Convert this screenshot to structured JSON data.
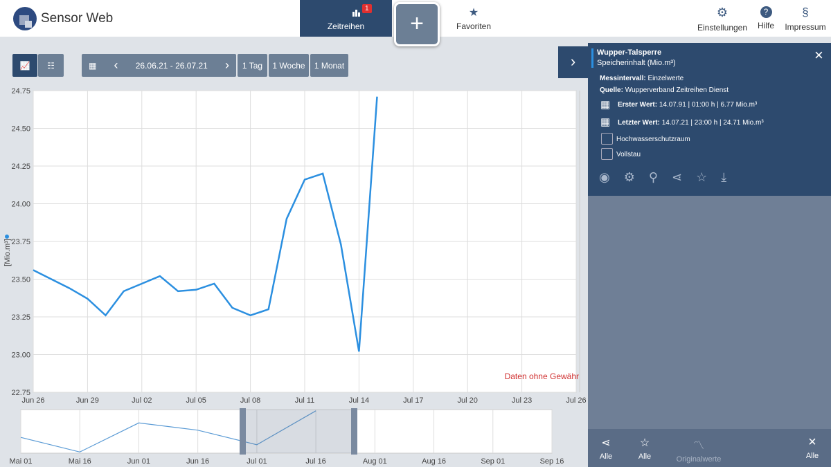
{
  "header": {
    "logo": "Sensor Web",
    "tabs": [
      {
        "label": "Zeitreihen",
        "badge": "1"
      },
      {
        "label": "Favoriten"
      }
    ],
    "menu": [
      "Einstellungen",
      "Hilfe",
      "Impressum"
    ]
  },
  "toolbar": {
    "date_range": "26.06.21 - 26.07.21",
    "buttons": [
      "1 Tag",
      "1 Woche",
      "1 Monat"
    ]
  },
  "main_chart": {
    "type": "line",
    "ylabel": "[Mio.m³]",
    "annotation": "Daten ohne Gewähr",
    "color": "#2b8fe0",
    "grid": true,
    "categories": [
      "Jun 26",
      null,
      null,
      "Jun 29",
      null,
      null,
      "Jul 02",
      null,
      null,
      "Jul 05",
      null,
      null,
      "Jul 08",
      null,
      null,
      "Jul 11",
      null,
      null,
      "Jul 14",
      null,
      null,
      "Jul 17",
      null,
      null,
      "Jul 20",
      null,
      null,
      "Jul 23",
      null,
      null,
      "Jul 26"
    ],
    "values": [
      23.56,
      23.5,
      23.44,
      23.37,
      23.26,
      23.42,
      23.47,
      23.52,
      23.42,
      23.43,
      23.47,
      23.31,
      23.26,
      23.3,
      23.9,
      24.16,
      24.2,
      23.73,
      23.02,
      24.71,
      null,
      null,
      null,
      null,
      null,
      null,
      null,
      null,
      null,
      null,
      null
    ],
    "ylim": [
      22.75,
      24.75
    ],
    "yticks": [
      22.75,
      {
        "value": 23,
        "label": "23.00"
      },
      23.25,
      {
        "value": 23.5,
        "label": "23.50"
      },
      23.75,
      {
        "value": 24,
        "label": "24.00"
      },
      24.25,
      {
        "value": 24.5,
        "label": "24.50"
      },
      24.75
    ]
  },
  "navigator": {
    "type": "line",
    "color": "#5b9bd5",
    "categories": [
      "Mai 01",
      "Mai 16",
      "Jun 01",
      "Jun 16",
      "Jul 01",
      "Jul 16",
      "Aug 01",
      "Aug 16",
      "Sep 01",
      "Sep 16"
    ],
    "values": [
      23.6,
      23.0,
      24.2,
      23.9,
      23.3,
      24.7,
      null,
      null,
      null,
      null
    ],
    "ylim": [
      22.95,
      24.75
    ]
  },
  "panel": {
    "title": "Wupper-Talsperre",
    "subtitle": "Speicherinhalt (Mio.m³)",
    "interval_label": "Messintervall:",
    "interval": "Einzelwerte",
    "source_label": "Quelle:",
    "source": "Wupperverband Zeitreihen Dienst",
    "first_label": "Erster Wert:",
    "first": "14.07.91 | 01:00 h | 6.77 Mio.m³",
    "last_label": "Letzter Wert:",
    "last": "14.07.21 | 23:00 h | 24.71 Mio.m³",
    "checkboxes": [
      "Hochwasserschutzraum",
      "Vollstau"
    ]
  },
  "footer": [
    "Alle",
    "Alle",
    "Originalwerte",
    "Alle"
  ]
}
